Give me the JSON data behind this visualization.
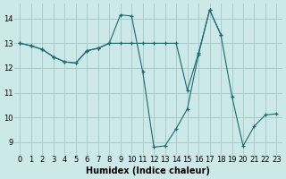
{
  "xlabel": "Humidex (Indice chaleur)",
  "xlim": [
    -0.5,
    23.5
  ],
  "ylim": [
    8.5,
    14.6
  ],
  "xticks": [
    0,
    1,
    2,
    3,
    4,
    5,
    6,
    7,
    8,
    9,
    10,
    11,
    12,
    13,
    14,
    15,
    16,
    17,
    18,
    19,
    20,
    21,
    22,
    23
  ],
  "yticks": [
    9,
    10,
    11,
    12,
    13,
    14
  ],
  "bg_color": "#cce8e8",
  "grid_color": "#aacccc",
  "line_color": "#1a6b6b",
  "line1": {
    "x": [
      0,
      1,
      2,
      3,
      4,
      5,
      6,
      7,
      8,
      9,
      10,
      11,
      12,
      13,
      14,
      15,
      16,
      17,
      18
    ],
    "y": [
      13.0,
      12.9,
      12.75,
      12.45,
      12.25,
      12.2,
      12.7,
      12.8,
      13.0,
      14.15,
      14.1,
      11.85,
      8.8,
      8.85,
      9.55,
      10.35,
      12.55,
      14.35,
      13.35
    ]
  },
  "line2": {
    "x": [
      0,
      1,
      2,
      3,
      4,
      5,
      6,
      7,
      8,
      9,
      10,
      11,
      12,
      13,
      14,
      15,
      16,
      17,
      18,
      19,
      20,
      21,
      22,
      23
    ],
    "y": [
      13.0,
      12.9,
      12.75,
      12.45,
      12.25,
      12.2,
      12.7,
      12.8,
      13.0,
      13.0,
      13.0,
      13.0,
      13.0,
      13.0,
      13.0,
      11.1,
      12.6,
      14.35,
      13.35,
      10.85,
      8.85,
      9.65,
      10.1,
      10.15
    ]
  }
}
